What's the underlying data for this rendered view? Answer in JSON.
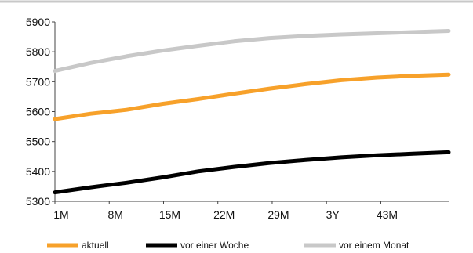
{
  "chart_data": {
    "type": "line",
    "x_labels": [
      "1M",
      "8M",
      "15M",
      "22M",
      "29M",
      "3Y",
      "43M"
    ],
    "ylim": [
      5300,
      5900
    ],
    "yticks": [
      5300,
      5400,
      5500,
      5600,
      5700,
      5800,
      5900
    ],
    "grid": false,
    "legend_position": "bottom",
    "series": [
      {
        "name": "aktuell",
        "color": "#f7a12a",
        "values": [
          5575,
          5593,
          5606,
          5626,
          5642,
          5660,
          5677,
          5692,
          5705,
          5714,
          5720,
          5724
        ]
      },
      {
        "name": "vor einer Woche",
        "color": "#000000",
        "values": [
          5330,
          5347,
          5362,
          5380,
          5400,
          5415,
          5428,
          5438,
          5447,
          5454,
          5459,
          5464
        ]
      },
      {
        "name": "vor einem Monat",
        "color": "#c8c8c8",
        "values": [
          5736,
          5763,
          5785,
          5804,
          5820,
          5835,
          5846,
          5853,
          5858,
          5862,
          5866,
          5870
        ]
      }
    ]
  }
}
